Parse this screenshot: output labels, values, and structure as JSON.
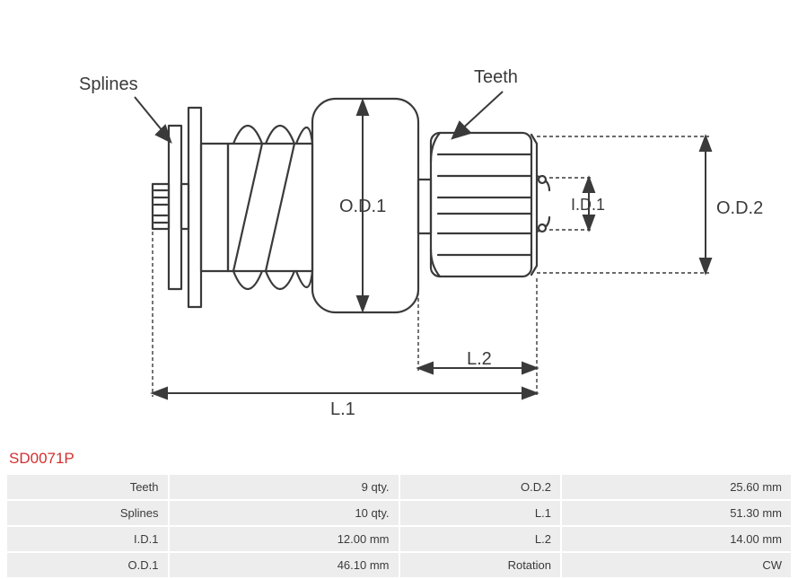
{
  "part_number": "SD0071P",
  "diagram": {
    "labels": {
      "splines": "Splines",
      "teeth": "Teeth",
      "od1": "O.D.1",
      "od2": "O.D.2",
      "id1": "I.D.1",
      "l1": "L.1",
      "l2": "L.2"
    },
    "style": {
      "stroke_color": "#3a3a3a",
      "stroke_width": 2.2,
      "dash_stroke_width": 1.4,
      "dash_pattern": "4 3",
      "label_font_size": 20,
      "label_color": "#3a3a3a",
      "label_font_size_small": 18
    }
  },
  "specs": {
    "rows": [
      {
        "label_left": "Teeth",
        "value_left": "9 qty.",
        "label_right": "O.D.2",
        "value_right": "25.60 mm"
      },
      {
        "label_left": "Splines",
        "value_left": "10 qty.",
        "label_right": "L.1",
        "value_right": "51.30 mm"
      },
      {
        "label_left": "I.D.1",
        "value_left": "12.00 mm",
        "label_right": "L.2",
        "value_right": "14.00 mm"
      },
      {
        "label_left": "O.D.1",
        "value_left": "46.10 mm",
        "label_right": "Rotation",
        "value_right": "CW"
      }
    ],
    "style": {
      "cell_bg": "#ededed",
      "text_color": "#3a3a3a",
      "font_size": 13
    }
  },
  "part_number_style": {
    "color": "#d32f2f",
    "font_size": 17
  }
}
